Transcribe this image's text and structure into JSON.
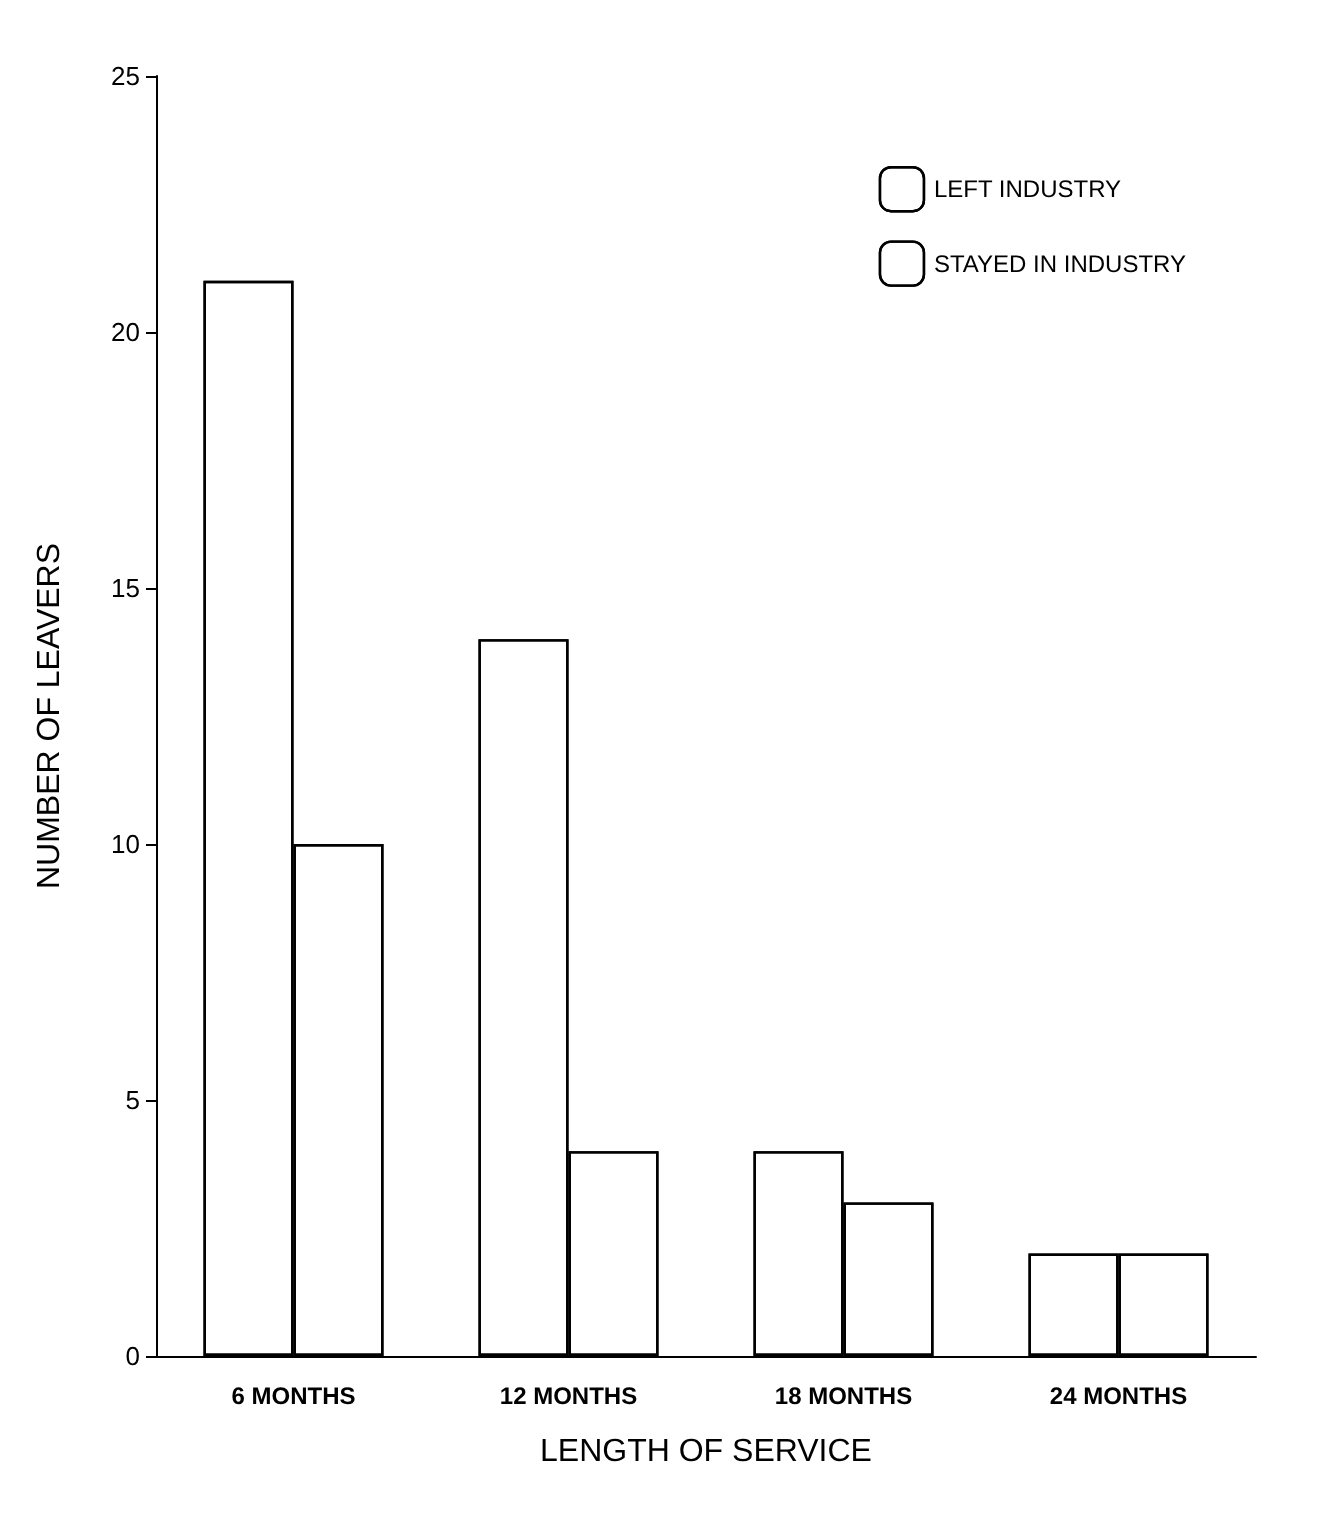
{
  "chart_data": {
    "type": "bar",
    "xlabel": "LENGTH OF SERVICE",
    "ylabel": "NUMBER OF LEAVERS",
    "categories": [
      "6 MONTHS",
      "12 MONTHS",
      "18 MONTHS",
      "24 MONTHS"
    ],
    "series": [
      {
        "name": "LEFT INDUSTRY",
        "color": "#ffffff",
        "values": [
          21,
          14,
          4,
          2
        ]
      },
      {
        "name": "STAYED IN INDUSTRY",
        "color": "#ffffff",
        "values": [
          10,
          4,
          3,
          2
        ]
      }
    ],
    "ylim": [
      0,
      25
    ],
    "yticks": [
      0,
      5,
      10,
      15,
      20,
      25
    ],
    "grid": false,
    "legend": "top right"
  }
}
